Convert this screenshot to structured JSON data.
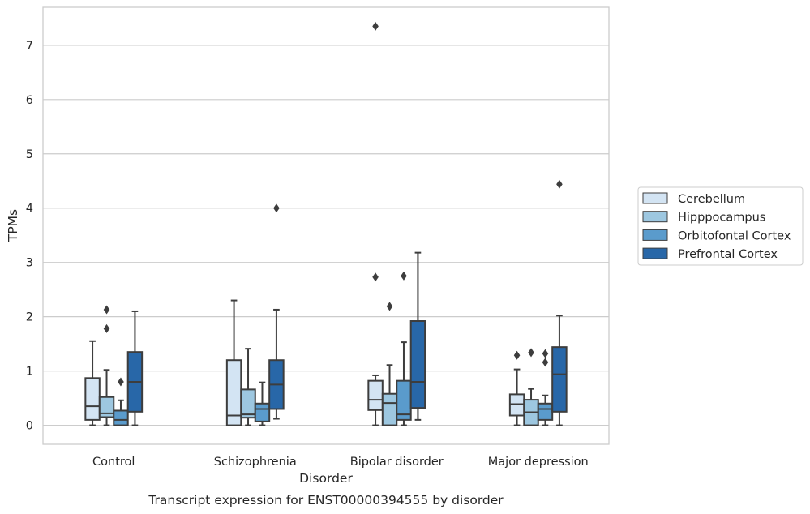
{
  "chart_data": {
    "type": "box",
    "title": "",
    "caption": "Transcript expression for ENST00000394555 by disorder",
    "xlabel": "Disorder",
    "ylabel": "TPMs",
    "ylim": [
      -0.35,
      7.7
    ],
    "yticks": [
      0,
      1,
      2,
      3,
      4,
      5,
      6,
      7
    ],
    "grid": "horizontal",
    "legend_position": "right",
    "categories": [
      "Control",
      "Schizophrenia",
      "Bipolar disorder",
      "Major depression"
    ],
    "series": [
      {
        "name": "Cerebellum",
        "color": "#d3e4f3",
        "boxes": [
          {
            "whislo": 0.0,
            "q1": 0.1,
            "med": 0.35,
            "q3": 0.87,
            "whishi": 1.55,
            "fliers": []
          },
          {
            "whislo": 0.0,
            "q1": 0.0,
            "med": 0.18,
            "q3": 1.2,
            "whishi": 2.3,
            "fliers": []
          },
          {
            "whislo": 0.0,
            "q1": 0.28,
            "med": 0.47,
            "q3": 0.82,
            "whishi": 0.92,
            "fliers": [
              2.73,
              7.35
            ]
          },
          {
            "whislo": 0.0,
            "q1": 0.18,
            "med": 0.39,
            "q3": 0.57,
            "whishi": 1.03,
            "fliers": [
              1.29
            ]
          }
        ]
      },
      {
        "name": "Hipppocampus",
        "color": "#9dc7e0",
        "boxes": [
          {
            "whislo": 0.0,
            "q1": 0.15,
            "med": 0.22,
            "q3": 0.52,
            "whishi": 1.02,
            "fliers": [
              1.78,
              2.13
            ]
          },
          {
            "whislo": 0.0,
            "q1": 0.14,
            "med": 0.2,
            "q3": 0.66,
            "whishi": 1.41,
            "fliers": []
          },
          {
            "whislo": 0.0,
            "q1": 0.0,
            "med": 0.41,
            "q3": 0.58,
            "whishi": 1.11,
            "fliers": [
              2.19
            ]
          },
          {
            "whislo": 0.0,
            "q1": 0.0,
            "med": 0.24,
            "q3": 0.47,
            "whishi": 0.67,
            "fliers": [
              1.34
            ]
          }
        ]
      },
      {
        "name": "Orbitofontal Cortex",
        "color": "#5a9bcc",
        "boxes": [
          {
            "whislo": 0.0,
            "q1": 0.0,
            "med": 0.1,
            "q3": 0.27,
            "whishi": 0.46,
            "fliers": [
              0.8
            ]
          },
          {
            "whislo": 0.0,
            "q1": 0.07,
            "med": 0.3,
            "q3": 0.4,
            "whishi": 0.79,
            "fliers": []
          },
          {
            "whislo": 0.0,
            "q1": 0.1,
            "med": 0.2,
            "q3": 0.82,
            "whishi": 1.53,
            "fliers": [
              2.75
            ]
          },
          {
            "whislo": 0.0,
            "q1": 0.1,
            "med": 0.3,
            "q3": 0.4,
            "whishi": 0.55,
            "fliers": [
              1.16,
              1.32
            ]
          }
        ]
      },
      {
        "name": "Prefrontal Cortex",
        "color": "#2867a8",
        "boxes": [
          {
            "whislo": 0.0,
            "q1": 0.25,
            "med": 0.8,
            "q3": 1.35,
            "whishi": 2.1,
            "fliers": []
          },
          {
            "whislo": 0.12,
            "q1": 0.3,
            "med": 0.75,
            "q3": 1.2,
            "whishi": 2.13,
            "fliers": [
              4.0
            ]
          },
          {
            "whislo": 0.1,
            "q1": 0.32,
            "med": 0.8,
            "q3": 1.92,
            "whishi": 3.18,
            "fliers": []
          },
          {
            "whislo": 0.0,
            "q1": 0.25,
            "med": 0.94,
            "q3": 1.44,
            "whishi": 2.02,
            "fliers": [
              4.44
            ]
          }
        ]
      }
    ]
  }
}
